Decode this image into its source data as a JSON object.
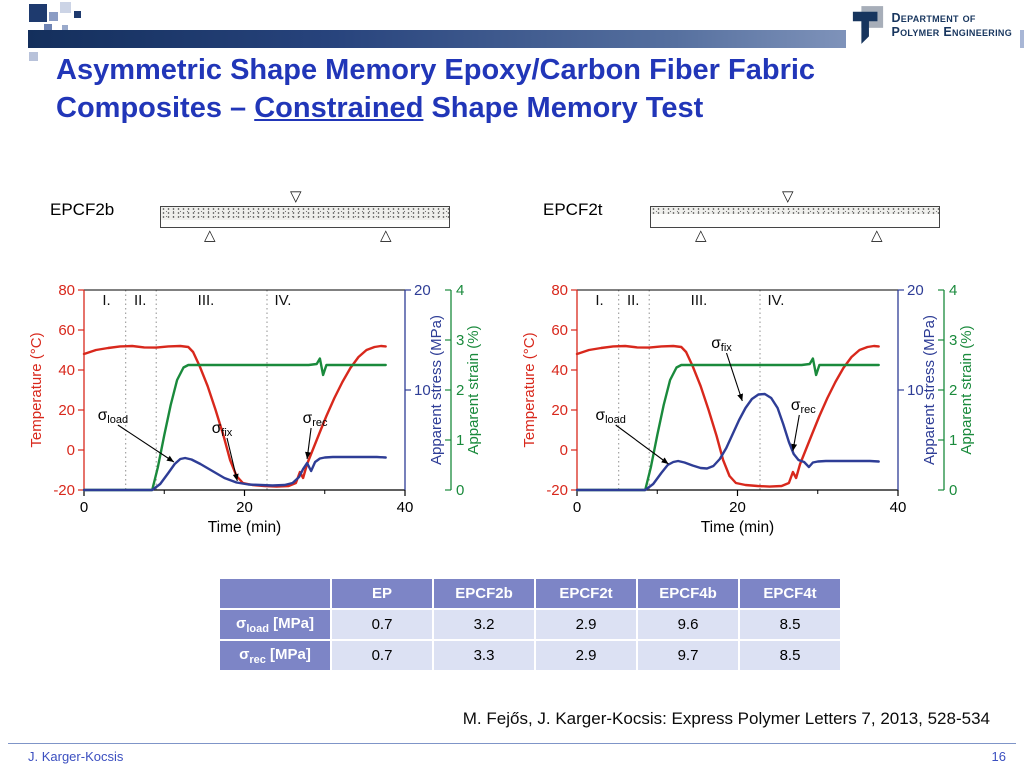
{
  "header": {
    "logo_line1": "Department of",
    "logo_line2": "Polymer Engineering"
  },
  "title": {
    "line1": "Asymmetric Shape Memory Epoxy/Carbon Fiber Fabric",
    "line2_prefix": "Composites – ",
    "line2_underline": "Constrained",
    "line2_suffix": " Shape Memory Test",
    "color": "#2136b8"
  },
  "diagram_symbols": {
    "load_point": "▽",
    "support": "△"
  },
  "specimens": [
    {
      "label": "EPCF2b"
    },
    {
      "label": "EPCF2t"
    }
  ],
  "chart_data": [
    {
      "type": "line",
      "name": "EPCF2b",
      "x": {
        "label": "Time (min)",
        "min": 0,
        "max": 40,
        "ticks": [
          0,
          20,
          40
        ],
        "minor_ticks": [
          10,
          30
        ]
      },
      "axes": [
        {
          "id": "temp",
          "label": "Temperature (°C)",
          "side": "left",
          "min": -20,
          "max": 80,
          "ticks": [
            -20,
            0,
            20,
            40,
            60,
            80
          ],
          "color": "#d8281c"
        },
        {
          "id": "stress",
          "label": "Apparent stress (MPa)",
          "side": "right",
          "min": 0,
          "max": 20,
          "ticks": [
            10,
            20
          ],
          "color": "#2e3d96"
        },
        {
          "id": "strain",
          "label": "Apparent strain (%)",
          "side": "right2",
          "min": 0,
          "max": 4,
          "ticks": [
            0,
            1,
            2,
            3,
            4
          ],
          "color": "#1a8a3c"
        }
      ],
      "regions": {
        "labels": [
          "I.",
          "II.",
          "III.",
          "IV."
        ],
        "dividers": [
          5.2,
          9,
          22.8
        ],
        "label_positions": [
          2.8,
          7,
          15.2,
          24.8
        ]
      },
      "annotations": [
        {
          "base": "σ",
          "sub": "load",
          "label_t": 3.6,
          "label_v": 7,
          "tip_t": 11.2,
          "tip_v": 2.8
        },
        {
          "base": "σ",
          "sub": "fix",
          "label_t": 17.2,
          "label_v": 5.7,
          "tip_t": 19.1,
          "tip_v": 0.9
        },
        {
          "base": "σ",
          "sub": "rec",
          "label_t": 28.8,
          "label_v": 6.7,
          "tip_t": 27.8,
          "tip_v": 3.1
        }
      ],
      "series": [
        {
          "name": "Temperature",
          "axis": "temp",
          "color": "#d8281c",
          "points": [
            [
              0,
              48
            ],
            [
              1.5,
              50
            ],
            [
              3,
              51
            ],
            [
              4.5,
              51.8
            ],
            [
              6,
              52
            ],
            [
              7.5,
              51.3
            ],
            [
              9,
              51.2
            ],
            [
              10.5,
              51.8
            ],
            [
              12,
              52
            ],
            [
              13,
              51.5
            ],
            [
              13.6,
              49
            ],
            [
              14.4,
              42
            ],
            [
              15.4,
              32
            ],
            [
              16.4,
              20
            ],
            [
              17.4,
              7
            ],
            [
              18.2,
              -5
            ],
            [
              19,
              -13
            ],
            [
              19.8,
              -16.5
            ],
            [
              21,
              -17.5
            ],
            [
              22.5,
              -18
            ],
            [
              24,
              -18.3
            ],
            [
              25.5,
              -18
            ],
            [
              26.4,
              -16.5
            ],
            [
              26.9,
              -11
            ],
            [
              27.3,
              -14
            ],
            [
              27.8,
              -7
            ],
            [
              28.5,
              0
            ],
            [
              29.3,
              8
            ],
            [
              30.2,
              17
            ],
            [
              31.2,
              26
            ],
            [
              32.2,
              34
            ],
            [
              33.2,
              41
            ],
            [
              34.2,
              46.5
            ],
            [
              35.2,
              50
            ],
            [
              36.2,
              51.5
            ],
            [
              37,
              52
            ],
            [
              37.6,
              51.8
            ]
          ]
        },
        {
          "name": "Apparent strain",
          "axis": "strain",
          "color": "#1a8a3c",
          "points": [
            [
              0,
              0
            ],
            [
              8.5,
              0
            ],
            [
              9.2,
              0.45
            ],
            [
              10,
              1.1
            ],
            [
              10.8,
              1.7
            ],
            [
              11.6,
              2.2
            ],
            [
              12.4,
              2.45
            ],
            [
              13,
              2.5
            ],
            [
              16,
              2.5
            ],
            [
              19,
              2.5
            ],
            [
              22,
              2.5
            ],
            [
              25,
              2.5
            ],
            [
              28,
              2.5
            ],
            [
              29,
              2.52
            ],
            [
              29.4,
              2.63
            ],
            [
              29.8,
              2.3
            ],
            [
              30.2,
              2.5
            ],
            [
              32,
              2.5
            ],
            [
              34,
              2.5
            ],
            [
              36,
              2.5
            ],
            [
              37.6,
              2.5
            ]
          ]
        },
        {
          "name": "Apparent stress",
          "axis": "stress",
          "color": "#2e3d96",
          "points": [
            [
              0,
              0
            ],
            [
              8.5,
              0
            ],
            [
              9.5,
              0.6
            ],
            [
              10.5,
              1.7
            ],
            [
              11.3,
              2.6
            ],
            [
              12,
              3.1
            ],
            [
              12.6,
              3.2
            ],
            [
              13.4,
              3.05
            ],
            [
              14.5,
              2.6
            ],
            [
              16,
              1.9
            ],
            [
              17.5,
              1.2
            ],
            [
              19,
              0.75
            ],
            [
              20.5,
              0.55
            ],
            [
              22,
              0.5
            ],
            [
              23.5,
              0.45
            ],
            [
              25,
              0.5
            ],
            [
              26,
              0.7
            ],
            [
              26.8,
              1.3
            ],
            [
              27.3,
              2.1
            ],
            [
              27.8,
              2.7
            ],
            [
              28.3,
              1.9
            ],
            [
              28.8,
              2.8
            ],
            [
              29.4,
              3.15
            ],
            [
              30,
              3.25
            ],
            [
              31,
              3.3
            ],
            [
              33,
              3.3
            ],
            [
              35,
              3.3
            ],
            [
              36.5,
              3.3
            ],
            [
              37.6,
              3.25
            ]
          ]
        }
      ]
    },
    {
      "type": "line",
      "name": "EPCF2t",
      "x": {
        "label": "Time (min)",
        "min": 0,
        "max": 40,
        "ticks": [
          0,
          20,
          40
        ],
        "minor_ticks": [
          10,
          30
        ]
      },
      "axes": [
        {
          "id": "temp",
          "label": "Temperature (°C)",
          "side": "left",
          "min": -20,
          "max": 80,
          "ticks": [
            -20,
            0,
            20,
            40,
            60,
            80
          ],
          "color": "#d8281c"
        },
        {
          "id": "stress",
          "label": "Apparent stress (MPa)",
          "side": "right",
          "min": 0,
          "max": 20,
          "ticks": [
            10,
            20
          ],
          "color": "#2e3d96"
        },
        {
          "id": "strain",
          "label": "Apparent strain (%)",
          "side": "right2",
          "min": 0,
          "max": 4,
          "ticks": [
            0,
            1,
            2,
            3,
            4
          ],
          "color": "#1a8a3c"
        }
      ],
      "regions": {
        "labels": [
          "I.",
          "II.",
          "III.",
          "IV."
        ],
        "dividers": [
          5.2,
          9,
          22.8
        ],
        "label_positions": [
          2.8,
          7,
          15.2,
          24.8
        ]
      },
      "annotations": [
        {
          "base": "σ",
          "sub": "load",
          "label_t": 4.2,
          "label_v": 7,
          "tip_t": 11.4,
          "tip_v": 2.6
        },
        {
          "base": "σ",
          "sub": "fix",
          "label_t": 18,
          "label_v": 14.2,
          "tip_t": 20.6,
          "tip_v": 8.9
        },
        {
          "base": "σ",
          "sub": "rec",
          "label_t": 28.2,
          "label_v": 8,
          "tip_t": 26.9,
          "tip_v": 3.9
        }
      ],
      "series": [
        {
          "name": "Temperature",
          "axis": "temp",
          "color": "#d8281c",
          "points": [
            [
              0,
              48
            ],
            [
              1.5,
              50
            ],
            [
              3,
              51
            ],
            [
              4.5,
              51.8
            ],
            [
              6,
              52
            ],
            [
              7.5,
              51.3
            ],
            [
              9,
              51.2
            ],
            [
              10.5,
              51.8
            ],
            [
              12,
              52
            ],
            [
              13,
              51.5
            ],
            [
              13.6,
              49
            ],
            [
              14.4,
              42
            ],
            [
              15.4,
              32
            ],
            [
              16.4,
              20
            ],
            [
              17.4,
              7
            ],
            [
              18.2,
              -5
            ],
            [
              19,
              -13
            ],
            [
              19.8,
              -16.5
            ],
            [
              21,
              -17.5
            ],
            [
              22.5,
              -18
            ],
            [
              24,
              -18.3
            ],
            [
              25.5,
              -18
            ],
            [
              26.4,
              -16.5
            ],
            [
              26.9,
              -11
            ],
            [
              27.3,
              -14
            ],
            [
              27.8,
              -7
            ],
            [
              28.5,
              0
            ],
            [
              29.3,
              8
            ],
            [
              30.2,
              17
            ],
            [
              31.2,
              26
            ],
            [
              32.2,
              34
            ],
            [
              33.2,
              41
            ],
            [
              34.2,
              46.5
            ],
            [
              35.2,
              50
            ],
            [
              36.2,
              51.5
            ],
            [
              37,
              52
            ],
            [
              37.6,
              51.8
            ]
          ]
        },
        {
          "name": "Apparent strain",
          "axis": "strain",
          "color": "#1a8a3c",
          "points": [
            [
              0,
              0
            ],
            [
              8.5,
              0
            ],
            [
              9.2,
              0.45
            ],
            [
              10,
              1.1
            ],
            [
              10.8,
              1.7
            ],
            [
              11.6,
              2.2
            ],
            [
              12.4,
              2.45
            ],
            [
              13,
              2.5
            ],
            [
              16,
              2.5
            ],
            [
              19,
              2.5
            ],
            [
              22,
              2.5
            ],
            [
              25,
              2.5
            ],
            [
              28,
              2.5
            ],
            [
              29,
              2.52
            ],
            [
              29.4,
              2.63
            ],
            [
              29.8,
              2.3
            ],
            [
              30.2,
              2.5
            ],
            [
              32,
              2.5
            ],
            [
              34,
              2.5
            ],
            [
              36,
              2.5
            ],
            [
              37.6,
              2.5
            ]
          ]
        },
        {
          "name": "Apparent stress",
          "axis": "stress",
          "color": "#2e3d96",
          "points": [
            [
              0,
              0
            ],
            [
              8.5,
              0
            ],
            [
              9.5,
              0.6
            ],
            [
              10.5,
              1.7
            ],
            [
              11.3,
              2.5
            ],
            [
              12,
              2.8
            ],
            [
              12.6,
              2.9
            ],
            [
              13.4,
              2.75
            ],
            [
              14.4,
              2.45
            ],
            [
              15.4,
              2.2
            ],
            [
              16.2,
              2.15
            ],
            [
              17,
              2.4
            ],
            [
              17.8,
              3.1
            ],
            [
              18.6,
              4.2
            ],
            [
              19.4,
              5.6
            ],
            [
              20.2,
              7
            ],
            [
              21,
              8.2
            ],
            [
              21.8,
              9.1
            ],
            [
              22.6,
              9.55
            ],
            [
              23.4,
              9.6
            ],
            [
              24.2,
              9.2
            ],
            [
              25,
              8.2
            ],
            [
              25.7,
              6.6
            ],
            [
              26.4,
              4.8
            ],
            [
              27,
              3.6
            ],
            [
              27.6,
              3
            ],
            [
              28.3,
              2.8
            ],
            [
              28.9,
              2.3
            ],
            [
              29.4,
              2.75
            ],
            [
              30,
              2.85
            ],
            [
              31,
              2.9
            ],
            [
              33,
              2.9
            ],
            [
              35,
              2.9
            ],
            [
              36.5,
              2.9
            ],
            [
              37.6,
              2.85
            ]
          ]
        }
      ]
    },
    {
      "type": "table",
      "columns": [
        "",
        "EP",
        "EPCF2b",
        "EPCF2t",
        "EPCF4b",
        "EPCF4t"
      ],
      "rows": [
        {
          "base": "σ",
          "sub": "load",
          "unit": " [MPa]",
          "values": [
            "0.7",
            "3.2",
            "2.9",
            "9.6",
            "8.5"
          ]
        },
        {
          "base": "σ",
          "sub": "rec",
          "unit": " [MPa]",
          "values": [
            "0.7",
            "3.3",
            "2.9",
            "9.7",
            "8.5"
          ]
        }
      ],
      "header_bg": "#7d85c6",
      "cell_bg": "#dce1f3",
      "header_text": "#ffffff"
    }
  ],
  "citation": "M. Fejős, J. Karger-Kocsis: Express Polymer Letters 7, 2013, 528-534",
  "footer": {
    "author": "J. Karger-Kocsis",
    "page": "16"
  }
}
